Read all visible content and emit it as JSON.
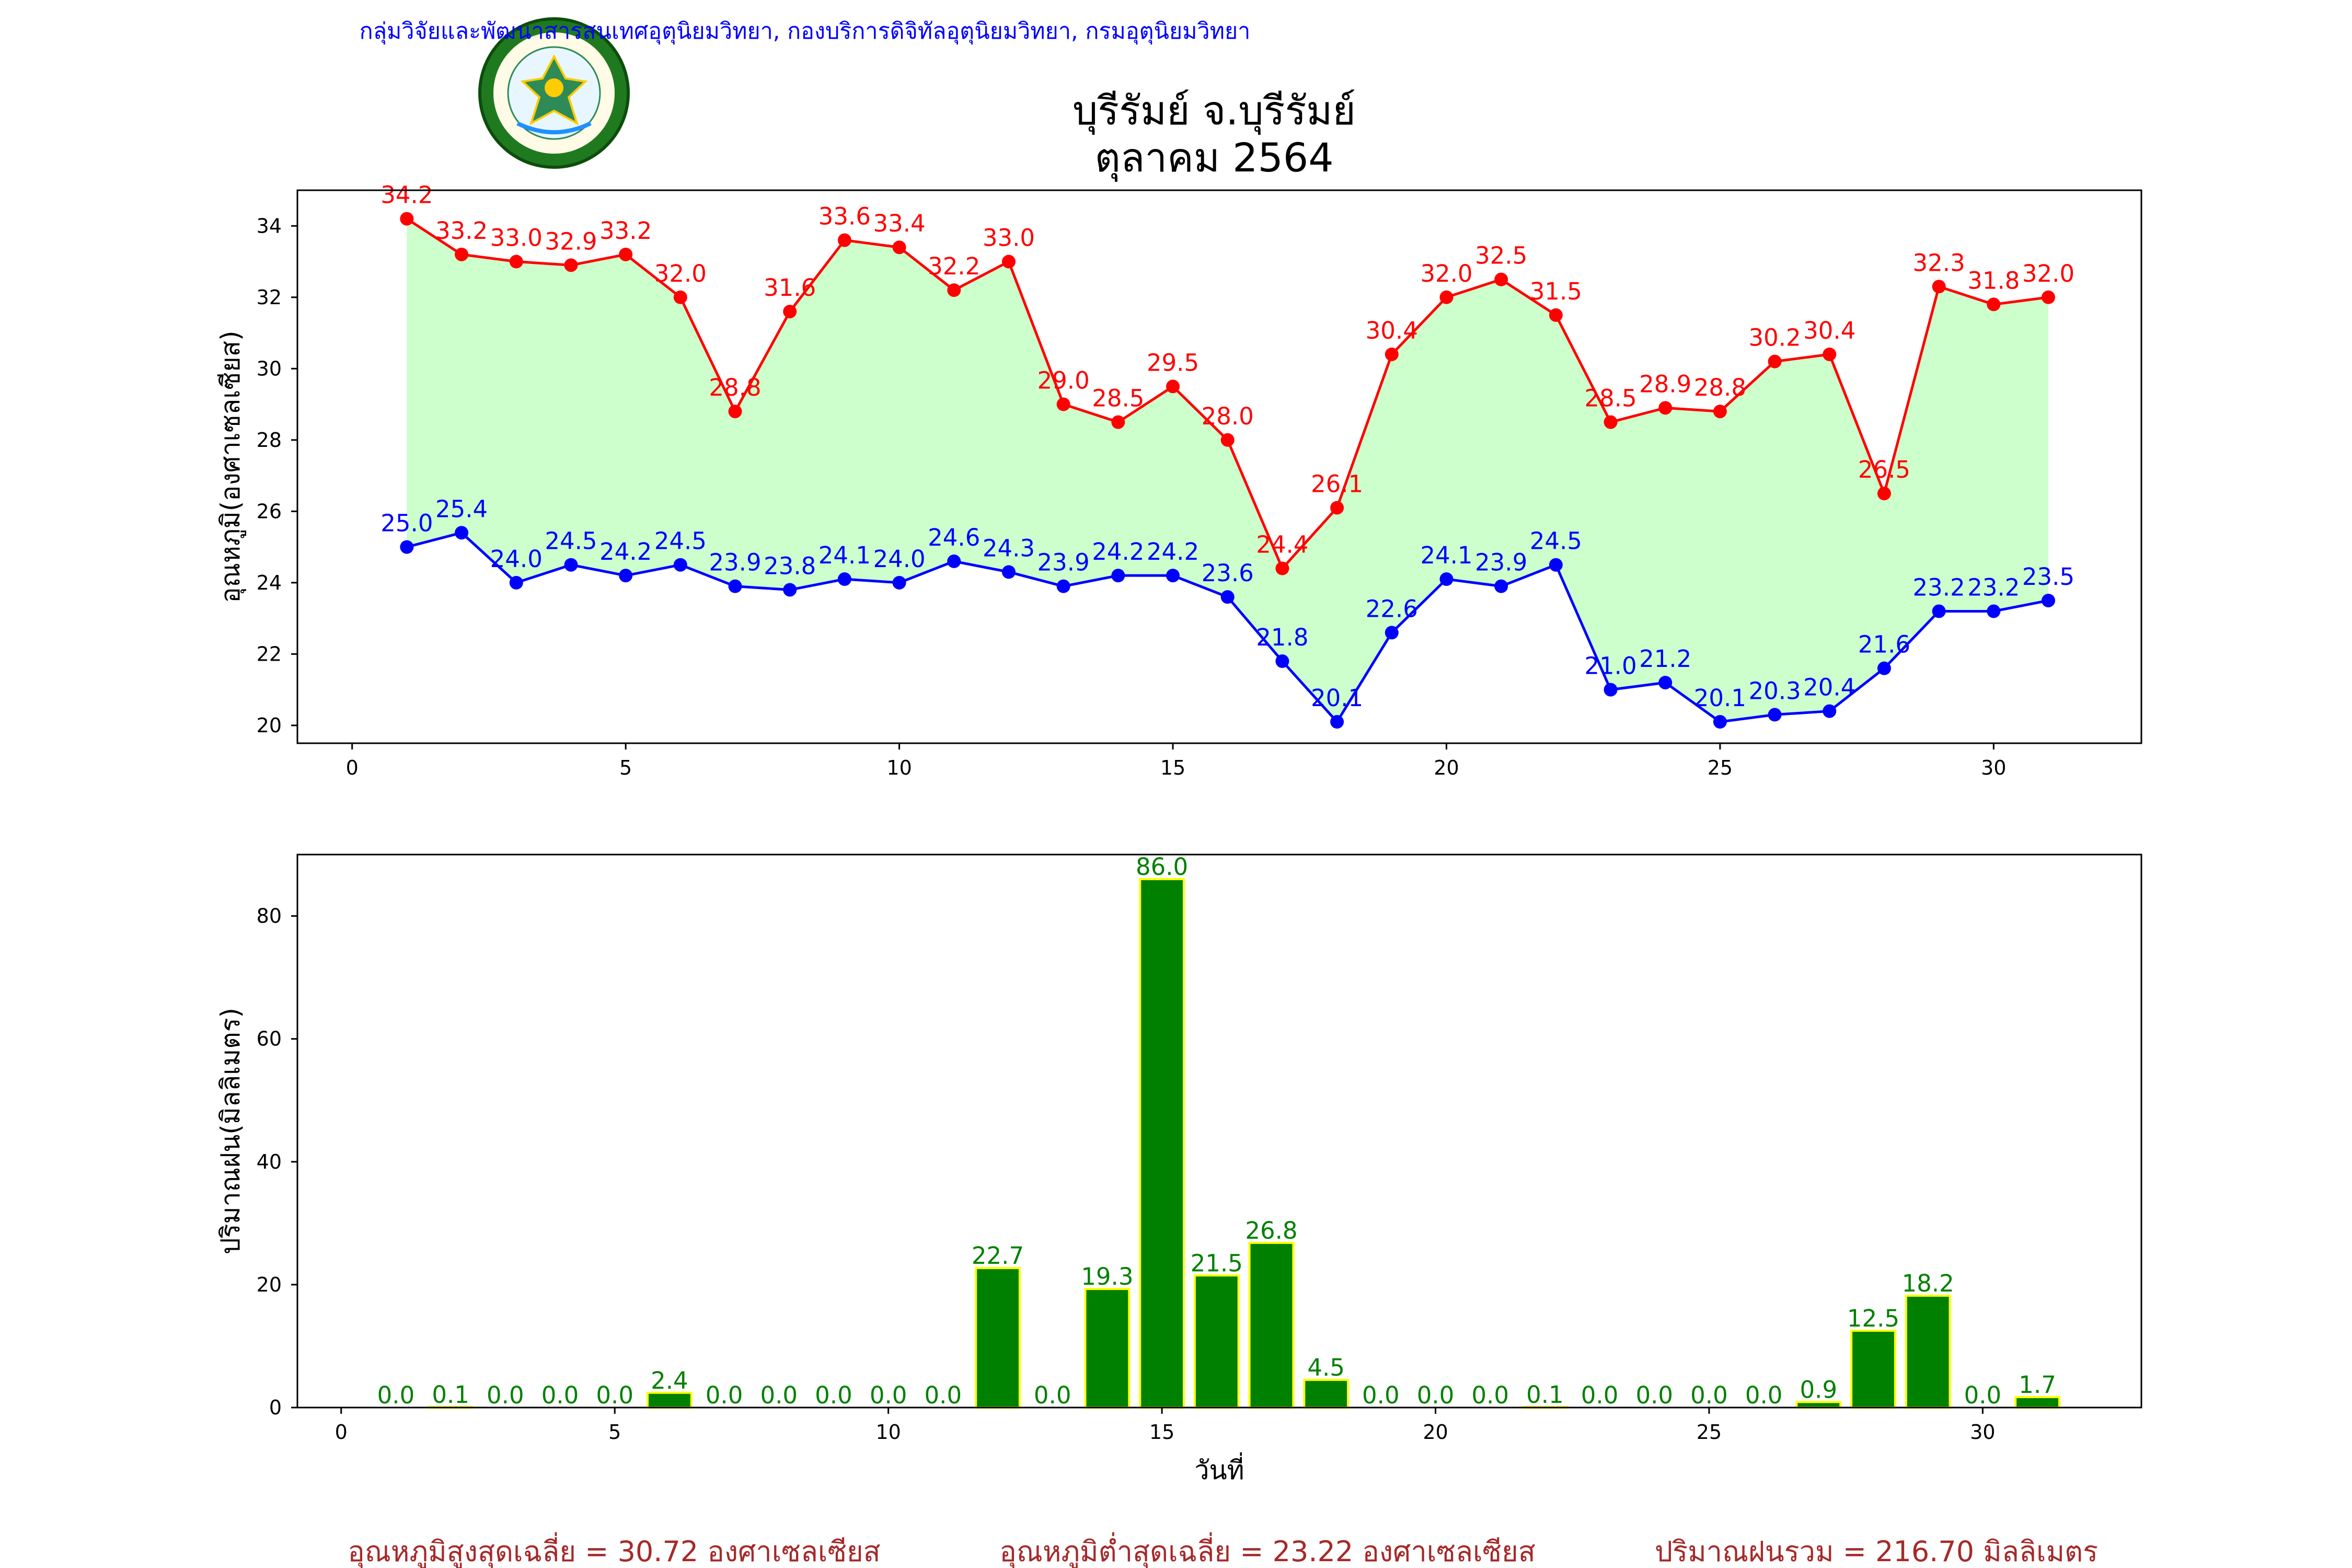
{
  "header": {
    "organization": "กลุ่มวิจัยและพัฒนาสารสนเทศอุตุนิยมวิทยา, กองบริการดิจิทัลอุตุนิยมวิทยา, กรมอุตุนิยมวิทยา",
    "logo_ring_text": "METEOROLOGICAL DEPARTMENT",
    "logo_top_text": "กรมอุตุนิยมวิทยา"
  },
  "chart_data": [
    {
      "type": "line",
      "title": "บุรีรัมย์ จ.บุรีรัมย์",
      "subtitle": "ตุลาคม 2564",
      "ylabel": "อุณหภูมิ(องศาเซลเซียส)",
      "xlabel": "",
      "xlim": [
        -1,
        32.7
      ],
      "ylim": [
        19.5,
        35
      ],
      "xticks": [
        0,
        5,
        10,
        15,
        20,
        25,
        30
      ],
      "yticks": [
        20,
        22,
        24,
        26,
        28,
        30,
        32,
        34
      ],
      "grid": false,
      "fill_between": {
        "color": "#ccffcc"
      },
      "x": [
        1,
        2,
        3,
        4,
        5,
        6,
        7,
        8,
        9,
        10,
        11,
        12,
        13,
        14,
        15,
        16,
        17,
        18,
        19,
        20,
        21,
        22,
        23,
        24,
        25,
        26,
        27,
        28,
        29,
        30,
        31
      ],
      "series": [
        {
          "color": "#ff0000",
          "values": [
            34.2,
            33.2,
            33.0,
            32.9,
            33.2,
            32.0,
            28.8,
            31.6,
            33.6,
            33.4,
            32.2,
            33.0,
            29.0,
            28.5,
            29.5,
            28.0,
            24.4,
            26.1,
            30.4,
            32.0,
            32.5,
            31.5,
            28.5,
            28.9,
            28.8,
            30.2,
            30.4,
            26.5,
            32.3,
            31.8,
            32.0
          ]
        },
        {
          "color": "#0000ff",
          "values": [
            25.0,
            25.4,
            24.0,
            24.5,
            24.2,
            24.5,
            23.9,
            23.8,
            24.1,
            24.0,
            24.6,
            24.3,
            23.9,
            24.2,
            24.2,
            23.6,
            21.8,
            20.1,
            22.6,
            24.1,
            23.9,
            24.5,
            21.0,
            21.2,
            20.1,
            20.3,
            20.4,
            21.6,
            23.2,
            23.2,
            23.5
          ]
        }
      ]
    },
    {
      "type": "bar",
      "xlabel": "วันที่",
      "ylabel": "ปริมาณฝน(มิลลิเมตร)",
      "xlim": [
        -0.8,
        32.9
      ],
      "ylim": [
        0,
        90
      ],
      "xticks": [
        0,
        5,
        10,
        15,
        20,
        25,
        30
      ],
      "yticks": [
        0,
        20,
        40,
        60,
        80
      ],
      "grid": false,
      "bar_color": "#008000",
      "edge_color": "#ffff00",
      "x": [
        1,
        2,
        3,
        4,
        5,
        6,
        7,
        8,
        9,
        10,
        11,
        12,
        13,
        14,
        15,
        16,
        17,
        18,
        19,
        20,
        21,
        22,
        23,
        24,
        25,
        26,
        27,
        28,
        29,
        30,
        31
      ],
      "values": [
        0.0,
        0.1,
        0.0,
        0.0,
        0.0,
        2.4,
        0.0,
        0.0,
        0.0,
        0.0,
        0.0,
        22.7,
        0.0,
        19.3,
        86.0,
        21.5,
        26.8,
        4.5,
        0.0,
        0.0,
        0.0,
        0.1,
        0.0,
        0.0,
        0.0,
        0.0,
        0.9,
        12.5,
        18.2,
        0.0,
        1.7
      ]
    }
  ],
  "summary": {
    "avg_max": "อุณหภูมิสูงสุดเฉลี่ย = 30.72 องศาเซลเซียส",
    "avg_min": "อุณหภูมิต่ำสุดเฉลี่ย = 23.22 องศาเซลเซียส",
    "total_rain": "ปริมาณฝนรวม = 216.70 มิลลิเมตร"
  }
}
